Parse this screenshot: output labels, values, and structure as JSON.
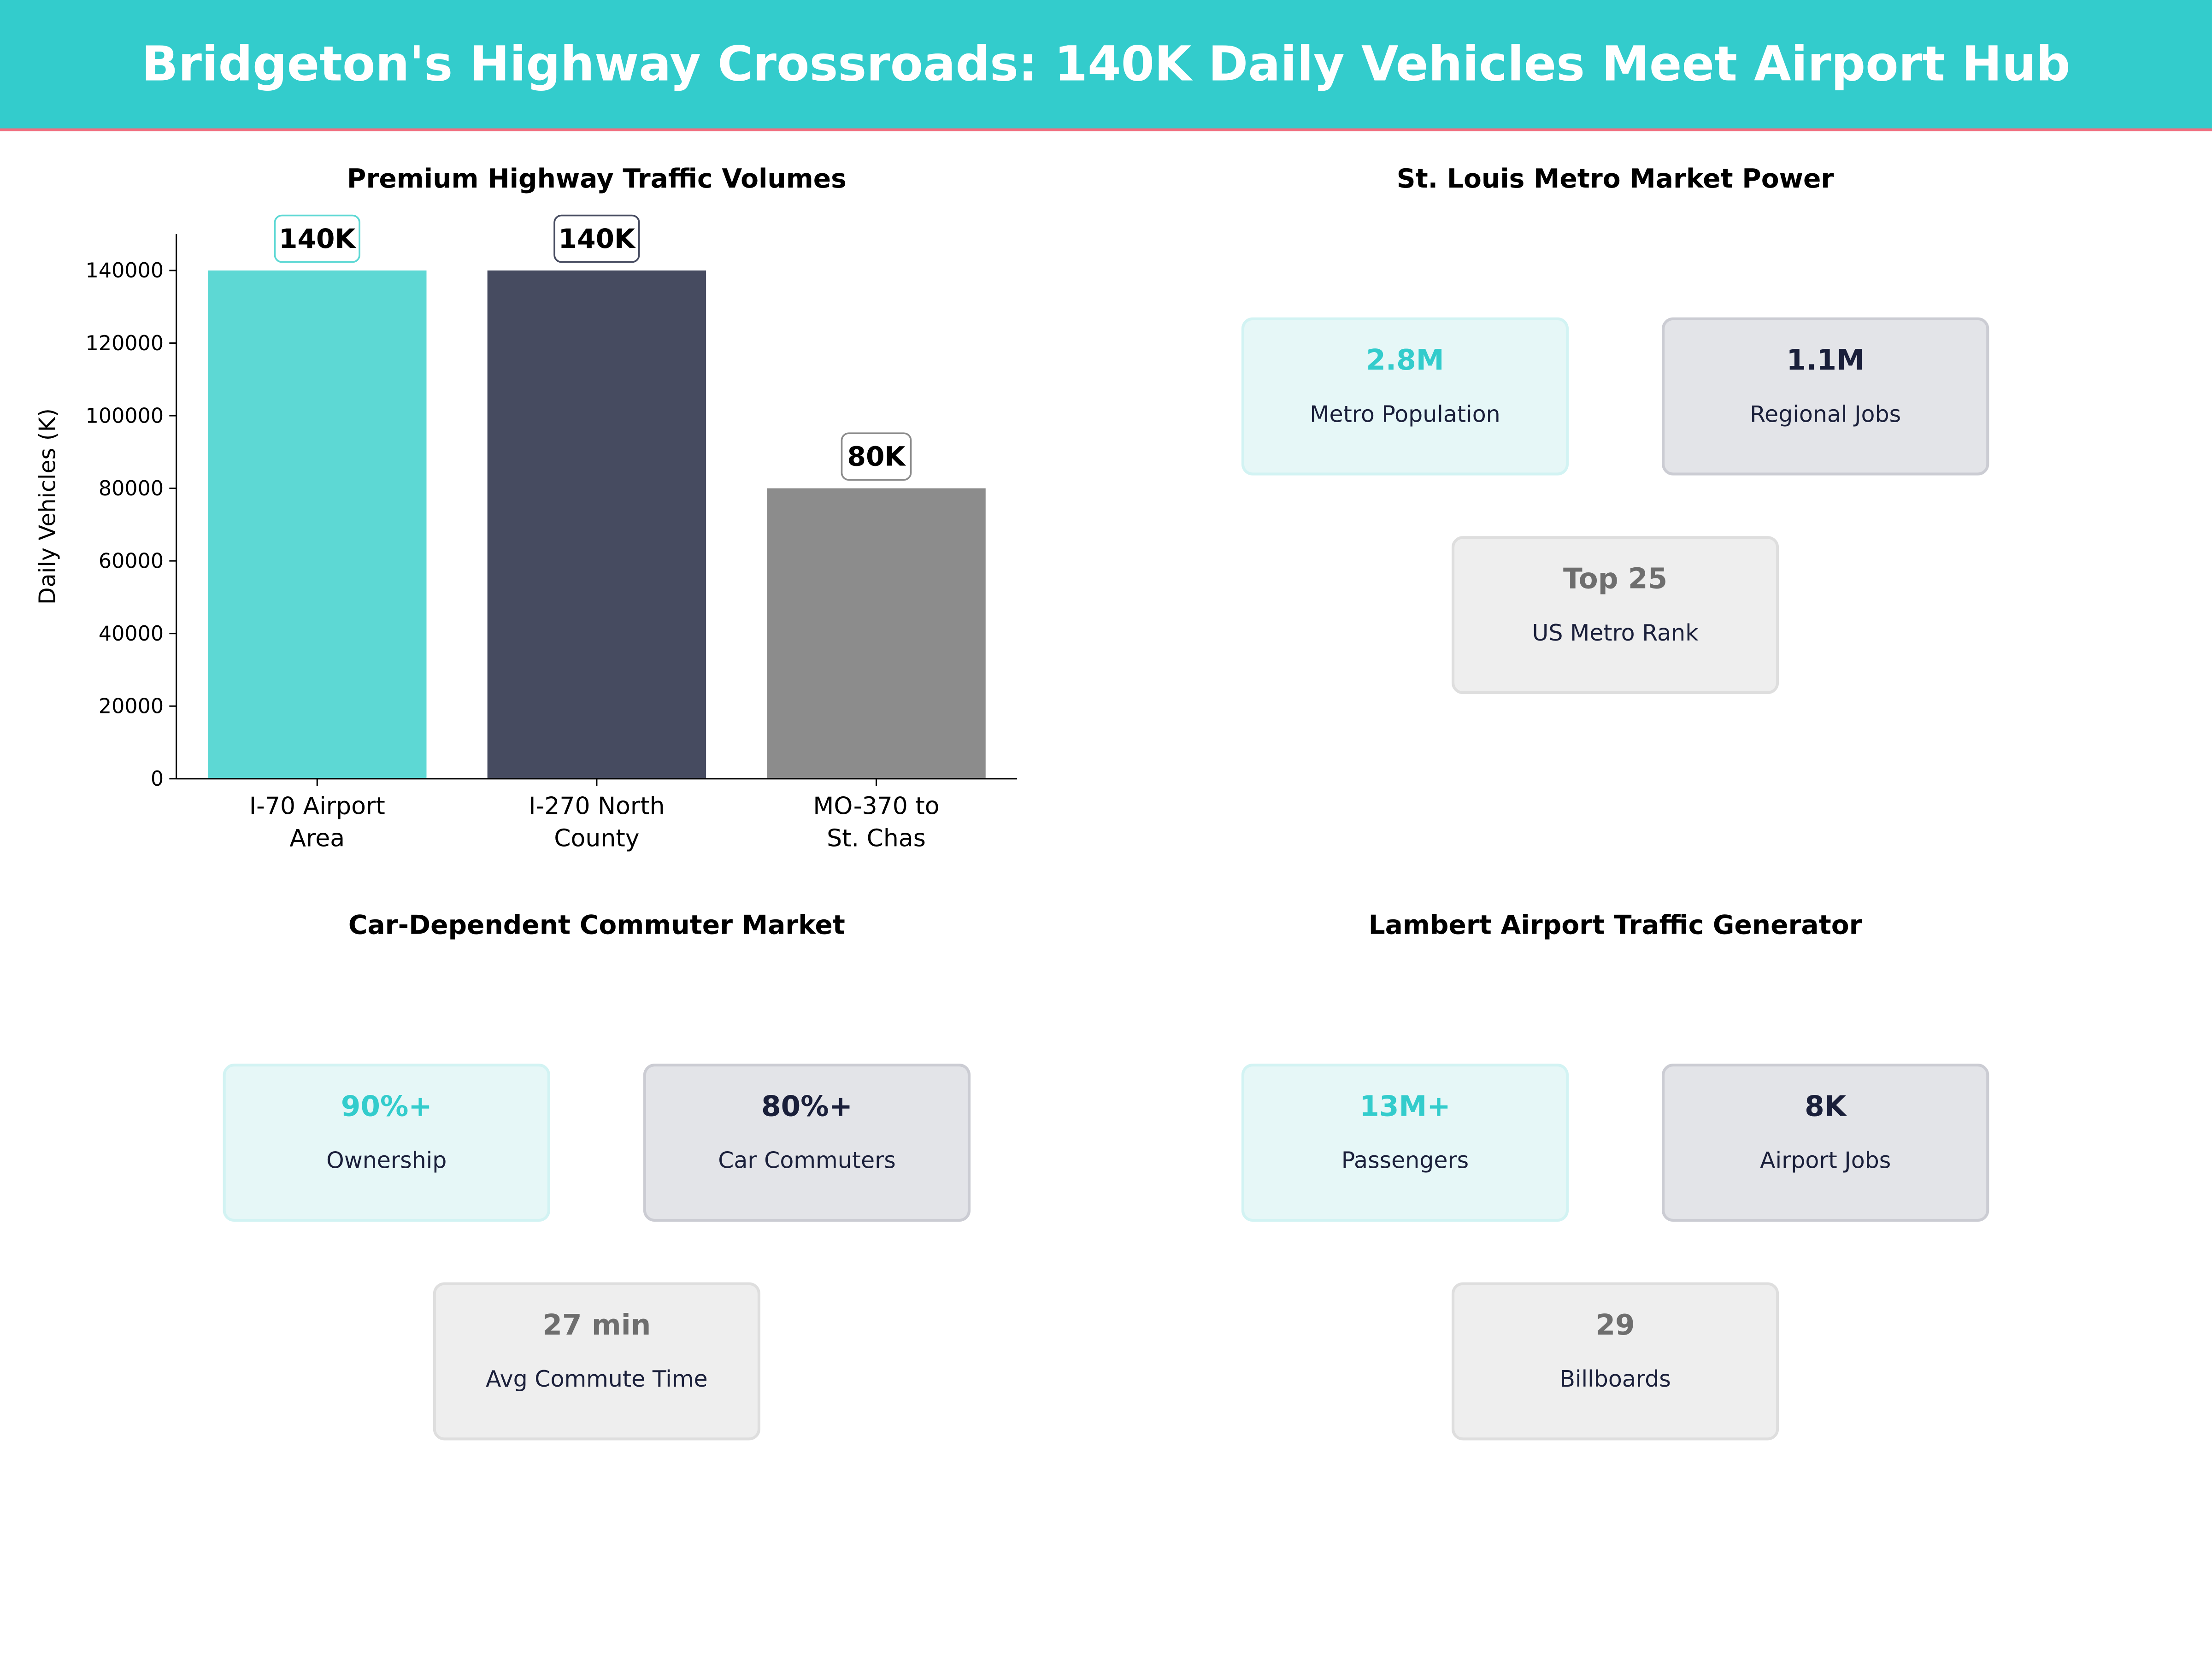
{
  "header": {
    "title": "Bridgeton's Highway Crossroads: 140K Daily Vehicles Meet Airport Hub",
    "bg_color": "#33CCCC",
    "accent_line_color": "#F07080"
  },
  "chart_data": {
    "type": "bar",
    "title": "Premium Highway Traffic Volumes",
    "xlabel": "",
    "ylabel": "Daily Vehicles (K)",
    "categories": [
      "I-70 Airport\nArea",
      "I-270 North\nCounty",
      "MO-370 to\nSt. Chas"
    ],
    "values": [
      140000,
      140000,
      80000
    ],
    "data_labels": [
      "140K",
      "140K",
      "80K"
    ],
    "colors": [
      "#5DD8D4",
      "#464B60",
      "#8C8C8C"
    ],
    "yticks": [
      0,
      20000,
      40000,
      60000,
      80000,
      100000,
      120000,
      140000
    ],
    "ylim": [
      0,
      150000
    ],
    "grid": false
  },
  "panels": [
    {
      "title": "St. Louis Metro Market Power",
      "cards": [
        {
          "value": "2.8M",
          "label": "Metro Population",
          "style": "teal"
        },
        {
          "value": "1.1M",
          "label": "Regional Jobs",
          "style": "navy"
        },
        {
          "value": "Top 25",
          "label": "US Metro Rank",
          "style": "gray"
        }
      ]
    },
    {
      "title": "Car-Dependent Commuter Market",
      "cards": [
        {
          "value": "90%+",
          "label": "Ownership",
          "style": "teal"
        },
        {
          "value": "80%+",
          "label": "Car Commuters",
          "style": "navy"
        },
        {
          "value": "27 min",
          "label": "Avg Commute Time",
          "style": "gray"
        }
      ]
    },
    {
      "title": "Lambert Airport Traffic Generator",
      "cards": [
        {
          "value": "13M+",
          "label": "Passengers",
          "style": "teal"
        },
        {
          "value": "8K",
          "label": "Airport Jobs",
          "style": "navy"
        },
        {
          "value": "29",
          "label": "Billboards",
          "style": "gray"
        }
      ]
    }
  ]
}
